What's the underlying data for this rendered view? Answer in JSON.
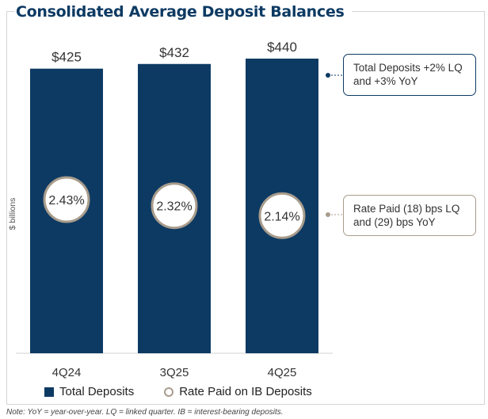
{
  "title": "Consolidated Average Deposit Balances",
  "chart_data": {
    "type": "bar",
    "categories": [
      "4Q24",
      "3Q25",
      "4Q25"
    ],
    "series": [
      {
        "name": "Total Deposits",
        "values": [
          425,
          432,
          440
        ],
        "labels": [
          "$425",
          "$432",
          "$440"
        ],
        "color": "#0d3a63"
      },
      {
        "name": "Rate Paid on IB Deposits",
        "values": [
          2.43,
          2.32,
          2.14
        ],
        "labels": [
          "2.43%",
          "2.32%",
          "2.14%"
        ],
        "color": "#a89c8c"
      }
    ],
    "ylabel": "$ billions",
    "ylim": [
      0,
      440
    ],
    "grid": false,
    "legend": "bottom",
    "annotations": [
      "Total Deposits +2% LQ and +3% YoY",
      "Rate Paid (18) bps LQ and (29) bps YoY"
    ]
  },
  "callouts": {
    "deposits": "Total Deposits +2% LQ and +3% YoY",
    "rate": "Rate Paid (18) bps LQ and (29) bps YoY"
  },
  "legend": {
    "deposits": "Total Deposits",
    "rate": "Rate Paid on IB Deposits"
  },
  "note": "Note: YoY = year-over-year. LQ = linked quarter. IB = interest-bearing deposits.",
  "colors": {
    "navy": "#0d3a63",
    "taupe": "#a89c8c",
    "border": "#d4d4d4"
  }
}
